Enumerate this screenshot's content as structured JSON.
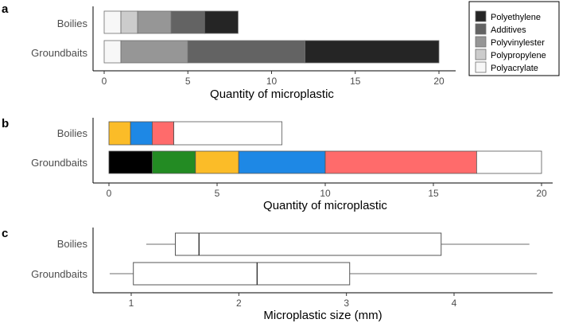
{
  "chart_data": [
    {
      "panel": "a",
      "type": "bar",
      "orientation": "horizontal",
      "stacked": true,
      "categories": [
        "Boilies",
        "Groundbaits"
      ],
      "xlabel": "Quantity of microplastic",
      "xlim": [
        0,
        20
      ],
      "xticks": [
        "0",
        "5",
        "10",
        "15",
        "20"
      ],
      "legend_position": "top-right",
      "series": [
        {
          "name": "Polyacrylate",
          "color": "#f7f7f7",
          "values": [
            1,
            1
          ]
        },
        {
          "name": "Polypropylene",
          "color": "#cccccc",
          "values": [
            1,
            0
          ]
        },
        {
          "name": "Polyvinylester",
          "color": "#969696",
          "values": [
            2,
            4
          ]
        },
        {
          "name": "Additives",
          "color": "#636363",
          "values": [
            2,
            7
          ]
        },
        {
          "name": "Polyethylene",
          "color": "#252525",
          "values": [
            2,
            8
          ]
        }
      ],
      "boilies_segments": [
        {
          "series": "Polyacrylate",
          "value": 1
        },
        {
          "series": "Polypropylene",
          "value": 1
        },
        {
          "series": "Polyvinylester",
          "value": 2
        },
        {
          "series": "Additives",
          "value": 2
        },
        {
          "series": "Polyethylene",
          "value": 2
        }
      ],
      "groundbaits_segments": [
        {
          "series": "Polyacrylate",
          "value": 1
        },
        {
          "series": "Polyvinylester",
          "value": 4
        },
        {
          "series": "Additives",
          "value": 7
        },
        {
          "series": "Polyethylene",
          "value": 8
        }
      ],
      "legend_order": [
        "Polyethylene",
        "Additives",
        "Polyvinylester",
        "Polypropylene",
        "Polyacrylate"
      ]
    },
    {
      "panel": "b",
      "type": "bar",
      "orientation": "horizontal",
      "stacked": true,
      "categories": [
        "Boilies",
        "Groundbaits"
      ],
      "xlabel": "Quantity of microplastic",
      "xlim": [
        0,
        20
      ],
      "xticks": [
        "0",
        "5",
        "10",
        "15",
        "20"
      ],
      "boilies_segments": [
        {
          "color": "#fbbc28",
          "value": 1
        },
        {
          "color": "#1e88e5",
          "value": 1
        },
        {
          "color": "#ff6b6b",
          "value": 1
        },
        {
          "color": "#ffffff",
          "value": 5
        }
      ],
      "groundbaits_segments": [
        {
          "color": "#000000",
          "value": 2
        },
        {
          "color": "#238b23",
          "value": 2
        },
        {
          "color": "#fbbc28",
          "value": 2
        },
        {
          "color": "#1e88e5",
          "value": 4
        },
        {
          "color": "#ff6b6b",
          "value": 7
        },
        {
          "color": "#ffffff",
          "value": 3
        }
      ]
    },
    {
      "panel": "c",
      "type": "box",
      "orientation": "horizontal",
      "categories": [
        "Boilies",
        "Groundbaits"
      ],
      "xlabel": "Microplastic size (mm)",
      "xlim": [
        0.72,
        4.82
      ],
      "xticks": [
        "1",
        "2",
        "3",
        "4"
      ],
      "boxes": [
        {
          "name": "Boilies",
          "min": 1.14,
          "q1": 1.41,
          "median": 1.63,
          "q3": 3.88,
          "max": 4.7
        },
        {
          "name": "Groundbaits",
          "min": 0.8,
          "q1": 1.02,
          "median": 2.17,
          "q3": 3.03,
          "max": 4.77
        }
      ]
    }
  ]
}
